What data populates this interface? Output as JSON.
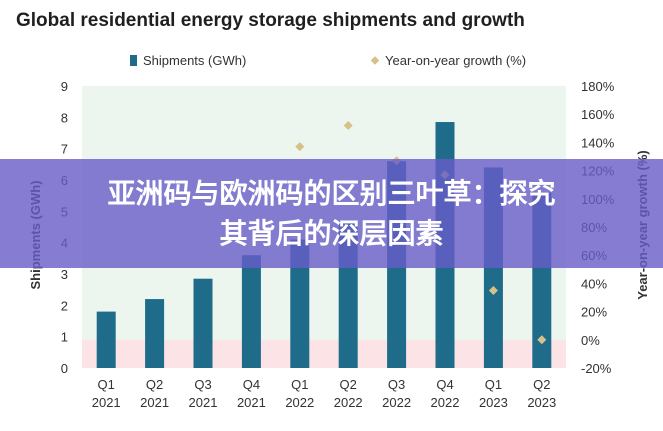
{
  "chart_data": {
    "type": "bar",
    "title": "Global residential energy storage shipments and growth",
    "categories": [
      "Q1 2021",
      "Q2 2021",
      "Q3 2021",
      "Q4 2021",
      "Q1 2022",
      "Q2 2022",
      "Q3 2022",
      "Q4 2022",
      "Q1 2023",
      "Q2 2023"
    ],
    "category_lines": [
      [
        "Q1",
        "2021"
      ],
      [
        "Q2",
        "2021"
      ],
      [
        "Q3",
        "2021"
      ],
      [
        "Q4",
        "2021"
      ],
      [
        "Q1",
        "2022"
      ],
      [
        "Q2",
        "2022"
      ],
      [
        "Q3",
        "2022"
      ],
      [
        "Q4",
        "2022"
      ],
      [
        "Q1",
        "2023"
      ],
      [
        "Q2",
        "2023"
      ]
    ],
    "series": [
      {
        "name": "Shipments (GWh)",
        "kind": "bar",
        "axis": "left",
        "color": "#1e6b8a",
        "values": [
          1.8,
          2.2,
          2.85,
          3.6,
          4.1,
          4.7,
          6.6,
          7.85,
          6.4,
          5.6
        ]
      },
      {
        "name": "Year-on-year growth (%)",
        "kind": "marker",
        "axis": "right",
        "color": "#d8c089",
        "values": [
          null,
          null,
          null,
          null,
          137,
          152,
          127,
          117,
          35,
          0
        ]
      }
    ],
    "ylabel": "Shipments (GWh)",
    "y2label": "Year-on-year growth (%)",
    "ylim": [
      0,
      9
    ],
    "y2lim": [
      -20,
      180
    ],
    "yticks": [
      "0",
      "1",
      "2",
      "3",
      "4",
      "5",
      "6",
      "7",
      "8",
      "9"
    ],
    "y2ticks": [
      "-20%",
      "0%",
      "20%",
      "40%",
      "60%",
      "80%",
      "100%",
      "120%",
      "140%",
      "160%",
      "180%"
    ],
    "legend_position": "top",
    "background_color": "#ecf5ee",
    "negative_band_color": "#fbe3e6"
  },
  "overlay": {
    "line1": "亚洲码与欧洲码的区别三叶草：探究",
    "line2": "其背后的深层因素"
  }
}
